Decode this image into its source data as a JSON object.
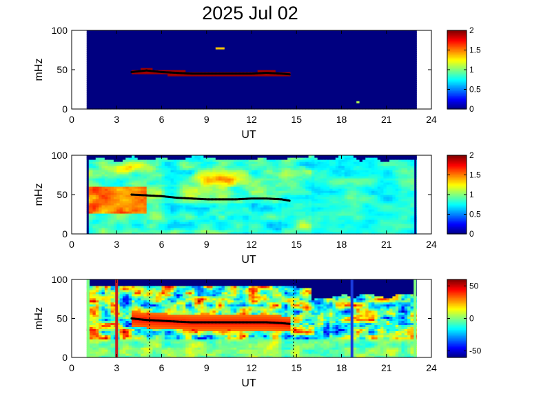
{
  "title": "2025 Jul 02",
  "colors": {
    "jet_low": "#00008f",
    "jet_high": "#7f0000",
    "background": "#00007f",
    "green_edge": "#80ff80",
    "red_line": "#c81e1e",
    "blue_line": "#1a3adc",
    "trace": "#000000"
  },
  "chart_data": [
    {
      "type": "heatmap",
      "xlabel": "UT",
      "ylabel": "mHz",
      "xlim": [
        0,
        24
      ],
      "ylim": [
        0,
        100
      ],
      "xticks": [
        "0",
        "3",
        "6",
        "9",
        "12",
        "15",
        "18",
        "21",
        "24"
      ],
      "yticks": [
        "0",
        "50",
        "100"
      ],
      "data_start_ut": 1.0,
      "data_end_ut": 23.0,
      "colorbar": {
        "min": 0,
        "max": 2,
        "ticks": [
          "0",
          "0.5",
          "1",
          "1.5",
          "2"
        ]
      },
      "trace": [
        [
          4.0,
          47
        ],
        [
          5.0,
          49
        ],
        [
          6.0,
          47
        ],
        [
          7.0,
          46
        ],
        [
          8.0,
          45
        ],
        [
          9.0,
          45
        ],
        [
          10.0,
          45
        ],
        [
          11.0,
          45
        ],
        [
          12.0,
          45
        ],
        [
          13.0,
          46
        ],
        [
          14.0,
          45
        ],
        [
          14.6,
          44
        ]
      ]
    },
    {
      "type": "heatmap",
      "xlabel": "UT",
      "ylabel": "mHz",
      "xlim": [
        0,
        24
      ],
      "ylim": [
        0,
        100
      ],
      "xticks": [
        "0",
        "3",
        "6",
        "9",
        "12",
        "15",
        "18",
        "21",
        "24"
      ],
      "yticks": [
        "0",
        "50",
        "100"
      ],
      "data_start_ut": 1.0,
      "data_end_ut": 23.0,
      "colorbar": {
        "min": 0,
        "max": 2,
        "ticks": [
          "0",
          "0.5",
          "1",
          "1.5",
          "2"
        ]
      },
      "trace": [
        [
          4.0,
          50
        ],
        [
          5.0,
          49
        ],
        [
          6.0,
          48
        ],
        [
          7.0,
          46
        ],
        [
          8.0,
          45
        ],
        [
          9.0,
          44
        ],
        [
          10.0,
          44
        ],
        [
          11.0,
          44
        ],
        [
          12.0,
          45
        ],
        [
          13.0,
          45
        ],
        [
          14.0,
          44
        ],
        [
          14.6,
          42
        ]
      ]
    },
    {
      "type": "heatmap",
      "xlabel": "UT",
      "ylabel": "mHz",
      "xlim": [
        0,
        24
      ],
      "ylim": [
        0,
        100
      ],
      "xticks": [
        "0",
        "3",
        "6",
        "9",
        "12",
        "15",
        "18",
        "21",
        "24"
      ],
      "yticks": [
        "0",
        "50",
        "100"
      ],
      "data_start_ut": 1.0,
      "data_end_ut": 23.0,
      "colorbar": {
        "min": -60,
        "max": 60,
        "ticks": [
          "50",
          "0",
          "-50"
        ]
      },
      "trace": [
        [
          4.0,
          50
        ],
        [
          5.0,
          48
        ],
        [
          6.0,
          47
        ],
        [
          7.0,
          46
        ],
        [
          8.0,
          45
        ],
        [
          9.0,
          45
        ],
        [
          10.0,
          45
        ],
        [
          11.0,
          45
        ],
        [
          12.0,
          45
        ],
        [
          13.0,
          45
        ],
        [
          14.0,
          44
        ],
        [
          14.6,
          43
        ]
      ],
      "vertical_lines": [
        {
          "ut": 3.0,
          "style": "solid",
          "color": "red"
        },
        {
          "ut": 5.2,
          "style": "dotted",
          "color": "red"
        },
        {
          "ut": 14.8,
          "style": "dotted",
          "color": "blue"
        },
        {
          "ut": 18.7,
          "style": "solid",
          "color": "blue"
        }
      ]
    }
  ]
}
